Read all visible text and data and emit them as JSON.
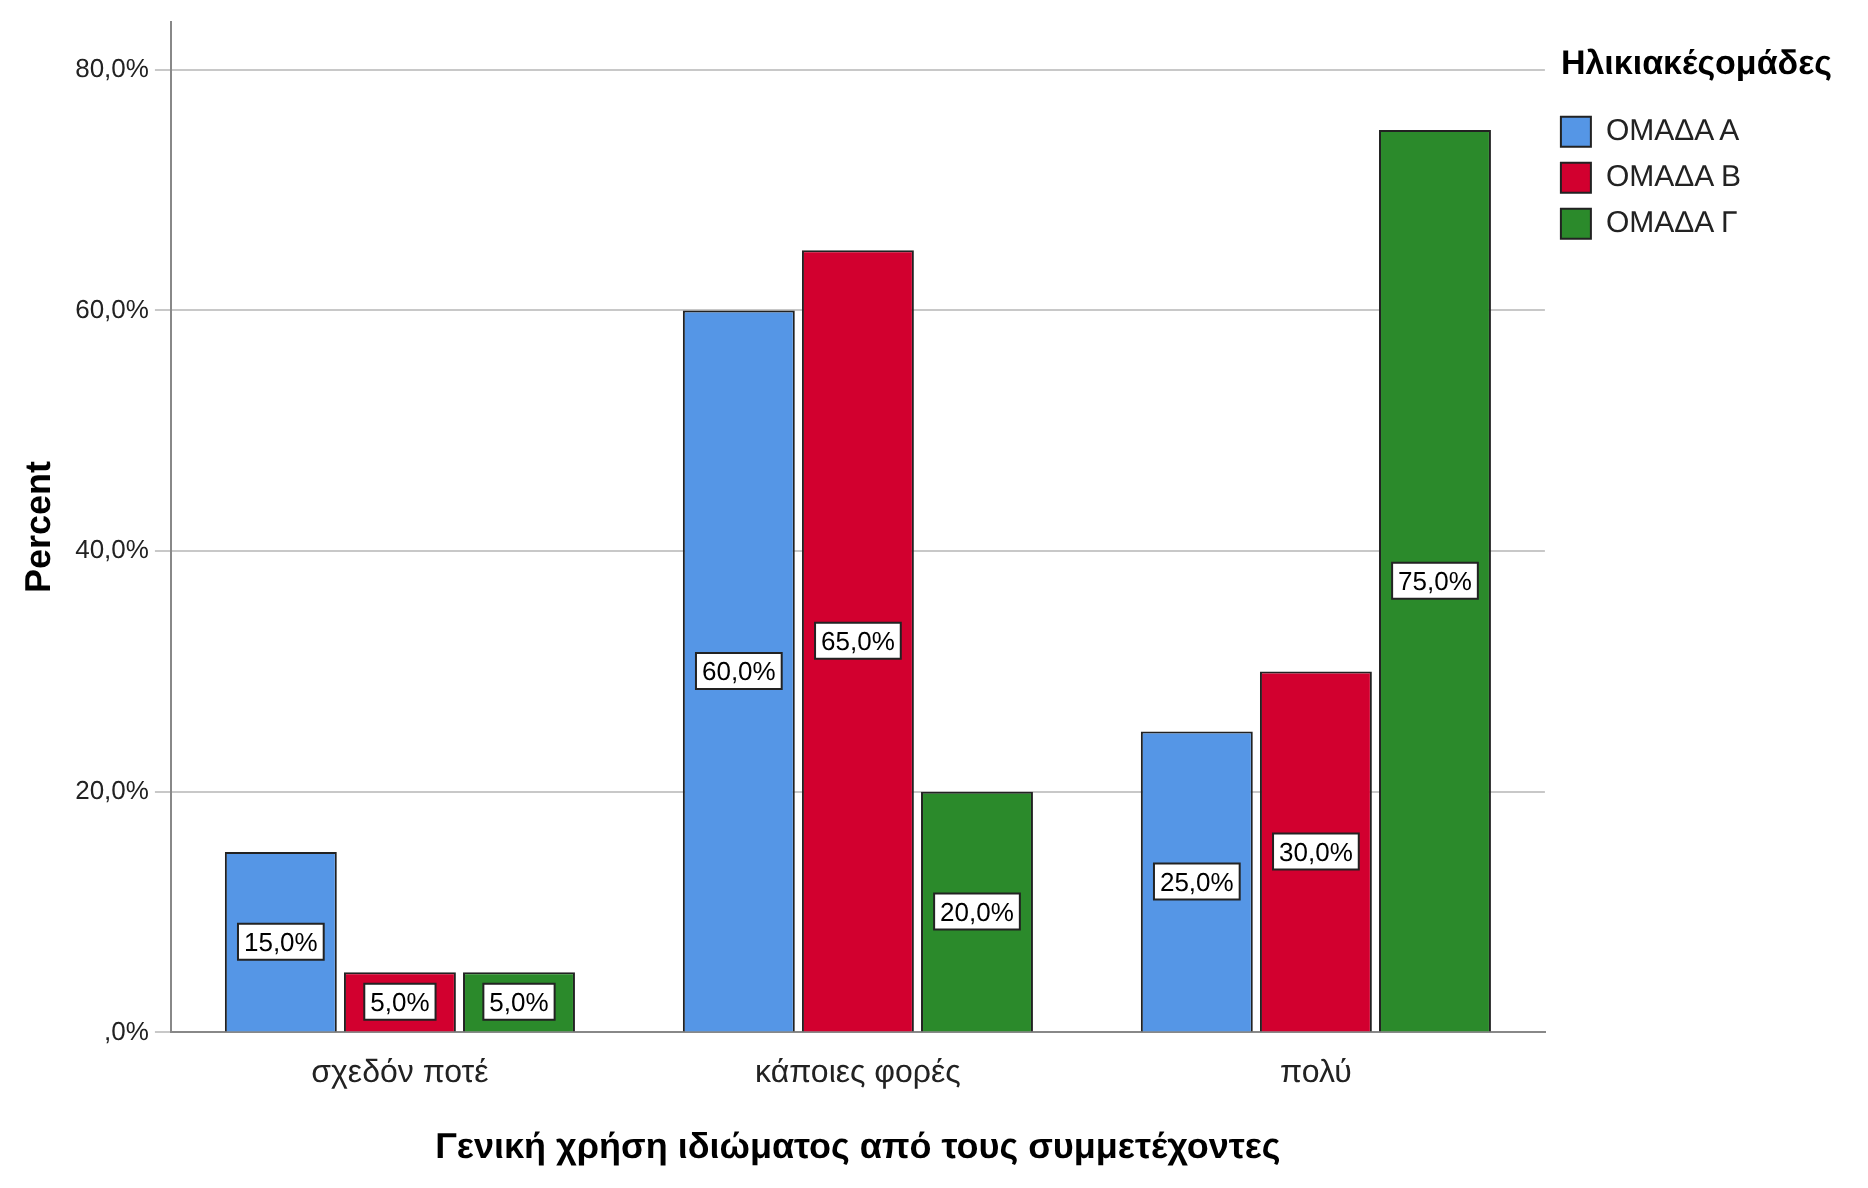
{
  "chart_data": {
    "type": "bar",
    "xlabel": "Γενική χρήση ιδιώματος από τους συμμετέχοντες",
    "ylabel": "Percent",
    "legend_title": "Ηλικιακέςομάδες",
    "categories": [
      "σχεδόν ποτέ",
      "κάποιες φορές",
      "πολύ"
    ],
    "series": [
      {
        "name": "ΟΜΑΔΑ Α",
        "color": "#5596e6",
        "values": [
          15,
          60,
          25
        ],
        "value_labels": [
          "15,0%",
          "60,0%",
          "25,0%"
        ]
      },
      {
        "name": "ΟΜΑΔΑ Β",
        "color": "#d2002f",
        "values": [
          5,
          65,
          30
        ],
        "value_labels": [
          "5,0%",
          "65,0%",
          "30,0%"
        ]
      },
      {
        "name": "ΟΜΑΔΑ Γ",
        "color": "#2b8a2b",
        "values": [
          5,
          20,
          75
        ],
        "value_labels": [
          "5,0%",
          "20,0%",
          "75,0%"
        ]
      }
    ],
    "ylim": [
      0,
      84
    ],
    "yticks": [
      {
        "value": 0,
        "label": ",0%"
      },
      {
        "value": 20,
        "label": "20,0%"
      },
      {
        "value": 40,
        "label": "40,0%"
      },
      {
        "value": 60,
        "label": "60,0%"
      },
      {
        "value": 80,
        "label": "80,0%"
      }
    ],
    "grid": "y",
    "legend": "top right"
  }
}
